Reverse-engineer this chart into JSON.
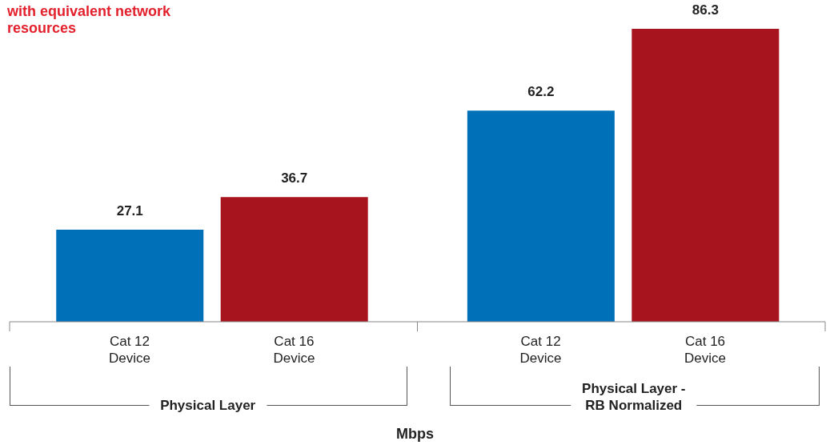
{
  "chart_data": {
    "type": "bar",
    "title": "with equivalent network resources",
    "categories": [
      "Cat 12\nDevice",
      "Cat 16\nDevice",
      "Cat 12\nDevice",
      "Cat 16\nDevice"
    ],
    "values": [
      27.1,
      36.7,
      62.2,
      86.3
    ],
    "colors": [
      "#0070b8",
      "#a8141e",
      "#0070b8",
      "#a8141e"
    ],
    "data_labels": true,
    "tick_labels": "x",
    "xlabel": "Mbps",
    "annotations": [
      "Physical Layer",
      "Physical Layer -\nRB Normalized"
    ]
  }
}
